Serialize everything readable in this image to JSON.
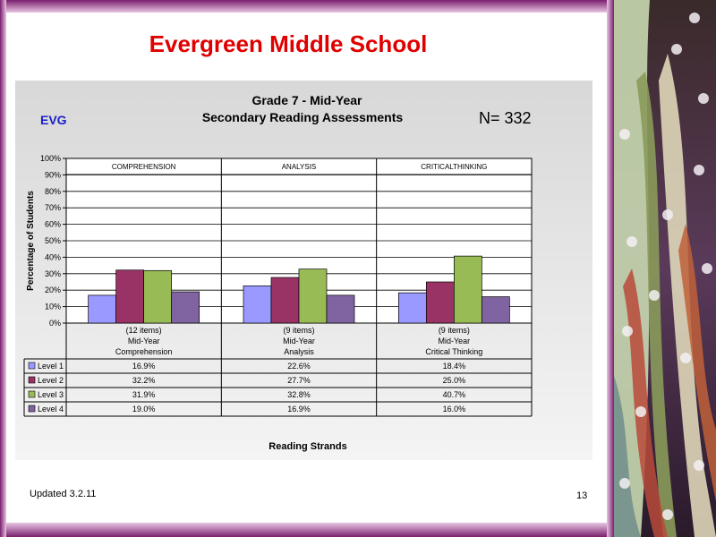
{
  "slide": {
    "title": "Evergreen Middle School",
    "school_code": "EVG",
    "n_label": "N=  332",
    "footer_updated": "Updated  3.2.11",
    "page_number": "13"
  },
  "colors": {
    "frame": "#7a1f6e",
    "title_red": "#e00000",
    "level1": "#9999ff",
    "level2": "#993366",
    "level3": "#99bb55",
    "level4": "#8064a2"
  },
  "chart_data": {
    "type": "bar",
    "title": "Grade 7 - Mid-Year",
    "subtitle": "Secondary Reading Assessments",
    "ylabel": "Percentage of Students",
    "xlabel": "Reading Strands",
    "ylim": [
      0,
      100
    ],
    "yticks": [
      "0%",
      "10%",
      "20%",
      "30%",
      "40%",
      "50%",
      "60%",
      "70%",
      "80%",
      "90%",
      "100%"
    ],
    "group_headers": [
      "COMPREHENSION",
      "ANALYSIS",
      "CRITICALTHINKING"
    ],
    "categories": [
      [
        "(12 items)",
        "Mid-Year",
        "Comprehension"
      ],
      [
        "(9 items)",
        "Mid-Year",
        "Analysis"
      ],
      [
        "(9 items)",
        "Mid-Year",
        "Critical Thinking"
      ]
    ],
    "series": [
      {
        "name": "Level 1",
        "values": [
          16.9,
          22.6,
          18.4
        ],
        "labels": [
          "16.9%",
          "22.6%",
          "18.4%"
        ]
      },
      {
        "name": "Level 2",
        "values": [
          32.2,
          27.7,
          25.0
        ],
        "labels": [
          "32.2%",
          "27.7%",
          "25.0%"
        ]
      },
      {
        "name": "Level 3",
        "values": [
          31.9,
          32.8,
          40.7
        ],
        "labels": [
          "31.9%",
          "32.8%",
          "40.7%"
        ]
      },
      {
        "name": "Level 4",
        "values": [
          19.0,
          16.9,
          16.0
        ],
        "labels": [
          "19.0%",
          "16.9%",
          "16.0%"
        ]
      }
    ],
    "grid": true,
    "legend": "data table below chart"
  }
}
